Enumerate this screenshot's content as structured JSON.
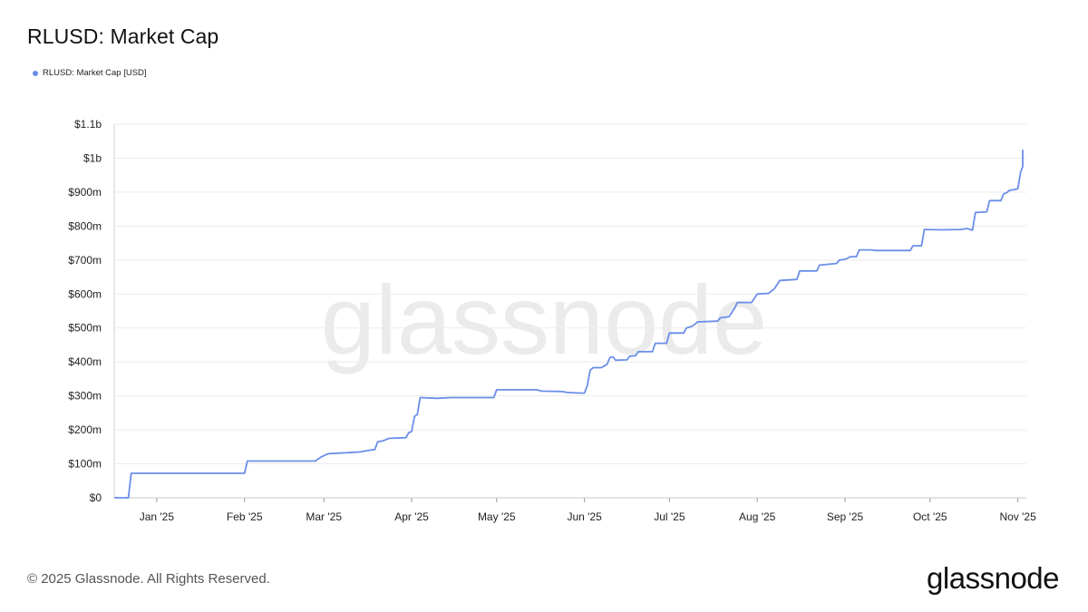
{
  "header": {
    "title": "RLUSD: Market Cap"
  },
  "legend": {
    "label": "RLUSD: Market Cap [USD]",
    "color": "#6b8ee8"
  },
  "watermark": {
    "text": "glassnode"
  },
  "footer": {
    "copyright": "© 2025 Glassnode. All Rights Reserved.",
    "logo": "glassnode"
  },
  "chart_data": {
    "type": "line",
    "title": "RLUSD: Market Cap",
    "xlabel": "",
    "ylabel": "",
    "grid": true,
    "legend_position": "top-left",
    "line_color": "#6b8ee8",
    "x_domain": [
      "2024-12-17",
      "2025-11-04"
    ],
    "ylim": [
      0,
      1100
    ],
    "y_unit": "millions USD",
    "y_ticks": [
      {
        "value": 0,
        "label": "$0"
      },
      {
        "value": 100,
        "label": "$100m"
      },
      {
        "value": 200,
        "label": "$200m"
      },
      {
        "value": 300,
        "label": "$300m"
      },
      {
        "value": 400,
        "label": "$400m"
      },
      {
        "value": 500,
        "label": "$500m"
      },
      {
        "value": 600,
        "label": "$600m"
      },
      {
        "value": 700,
        "label": "$700m"
      },
      {
        "value": 800,
        "label": "$800m"
      },
      {
        "value": 900,
        "label": "$900m"
      },
      {
        "value": 1000,
        "label": "$1b"
      },
      {
        "value": 1100,
        "label": "$1.1b"
      }
    ],
    "x_ticks": [
      {
        "date": "2025-01-01",
        "label": "Jan '25"
      },
      {
        "date": "2025-02-01",
        "label": "Feb '25"
      },
      {
        "date": "2025-03-01",
        "label": "Mar '25"
      },
      {
        "date": "2025-04-01",
        "label": "Apr '25"
      },
      {
        "date": "2025-05-01",
        "label": "May '25"
      },
      {
        "date": "2025-06-01",
        "label": "Jun '25"
      },
      {
        "date": "2025-07-01",
        "label": "Jul '25"
      },
      {
        "date": "2025-08-01",
        "label": "Aug '25"
      },
      {
        "date": "2025-09-01",
        "label": "Sep '25"
      },
      {
        "date": "2025-10-01",
        "label": "Oct '25"
      },
      {
        "date": "2025-11-01",
        "label": "Nov '25"
      }
    ],
    "series": [
      {
        "name": "RLUSD: Market Cap [USD]",
        "points": [
          [
            "2024-12-17",
            0
          ],
          [
            "2024-12-22",
            0
          ],
          [
            "2024-12-23",
            72
          ],
          [
            "2025-01-15",
            72
          ],
          [
            "2025-02-01",
            72
          ],
          [
            "2025-02-02",
            108
          ],
          [
            "2025-02-15",
            108
          ],
          [
            "2025-02-26",
            108
          ],
          [
            "2025-02-28",
            120
          ],
          [
            "2025-03-02",
            128
          ],
          [
            "2025-03-03",
            130
          ],
          [
            "2025-03-10",
            133
          ],
          [
            "2025-03-14",
            135
          ],
          [
            "2025-03-17",
            140
          ],
          [
            "2025-03-19",
            142
          ],
          [
            "2025-03-20",
            165
          ],
          [
            "2025-03-22",
            168
          ],
          [
            "2025-03-24",
            175
          ],
          [
            "2025-03-30",
            177
          ],
          [
            "2025-03-31",
            192
          ],
          [
            "2025-04-01",
            195
          ],
          [
            "2025-04-02",
            240
          ],
          [
            "2025-04-03",
            245
          ],
          [
            "2025-04-04",
            295
          ],
          [
            "2025-04-10",
            293
          ],
          [
            "2025-04-15",
            295
          ],
          [
            "2025-04-30",
            295
          ],
          [
            "2025-05-01",
            318
          ],
          [
            "2025-05-15",
            318
          ],
          [
            "2025-05-17",
            314
          ],
          [
            "2025-05-24",
            313
          ],
          [
            "2025-05-26",
            310
          ],
          [
            "2025-05-31",
            308
          ],
          [
            "2025-06-01",
            308
          ],
          [
            "2025-06-02",
            330
          ],
          [
            "2025-06-03",
            375
          ],
          [
            "2025-06-04",
            383
          ],
          [
            "2025-06-07",
            383
          ],
          [
            "2025-06-09",
            393
          ],
          [
            "2025-06-10",
            413
          ],
          [
            "2025-06-11",
            415
          ],
          [
            "2025-06-12",
            405
          ],
          [
            "2025-06-16",
            406
          ],
          [
            "2025-06-17",
            417
          ],
          [
            "2025-06-19",
            418
          ],
          [
            "2025-06-20",
            430
          ],
          [
            "2025-06-25",
            430
          ],
          [
            "2025-06-26",
            455
          ],
          [
            "2025-06-30",
            455
          ],
          [
            "2025-07-01",
            485
          ],
          [
            "2025-07-06",
            485
          ],
          [
            "2025-07-07",
            500
          ],
          [
            "2025-07-09",
            505
          ],
          [
            "2025-07-11",
            518
          ],
          [
            "2025-07-18",
            520
          ],
          [
            "2025-07-19",
            530
          ],
          [
            "2025-07-22",
            533
          ],
          [
            "2025-07-24",
            558
          ],
          [
            "2025-07-25",
            575
          ],
          [
            "2025-07-30",
            575
          ],
          [
            "2025-08-01",
            600
          ],
          [
            "2025-08-05",
            602
          ],
          [
            "2025-08-07",
            615
          ],
          [
            "2025-08-09",
            640
          ],
          [
            "2025-08-15",
            643
          ],
          [
            "2025-08-16",
            668
          ],
          [
            "2025-08-22",
            668
          ],
          [
            "2025-08-23",
            685
          ],
          [
            "2025-08-29",
            690
          ],
          [
            "2025-08-30",
            700
          ],
          [
            "2025-09-01",
            702
          ],
          [
            "2025-09-03",
            710
          ],
          [
            "2025-09-05",
            710
          ],
          [
            "2025-09-06",
            730
          ],
          [
            "2025-09-10",
            730
          ],
          [
            "2025-09-12",
            728
          ],
          [
            "2025-09-20",
            728
          ],
          [
            "2025-09-24",
            728
          ],
          [
            "2025-09-25",
            742
          ],
          [
            "2025-09-28",
            742
          ],
          [
            "2025-09-29",
            790
          ],
          [
            "2025-10-05",
            789
          ],
          [
            "2025-10-12",
            790
          ],
          [
            "2025-10-14",
            793
          ],
          [
            "2025-10-16",
            788
          ],
          [
            "2025-10-17",
            840
          ],
          [
            "2025-10-21",
            842
          ],
          [
            "2025-10-22",
            875
          ],
          [
            "2025-10-26",
            875
          ],
          [
            "2025-10-27",
            895
          ],
          [
            "2025-10-28",
            898
          ],
          [
            "2025-10-29",
            905
          ],
          [
            "2025-10-31",
            908
          ],
          [
            "2025-11-01",
            910
          ],
          [
            "2025-11-02",
            960
          ],
          [
            "2025-11-03",
            975
          ],
          [
            "2025-11-04",
            975
          ],
          [
            "2025-11-05",
            1025
          ],
          [
            "2025-11-06",
            1025
          ]
        ]
      }
    ]
  }
}
